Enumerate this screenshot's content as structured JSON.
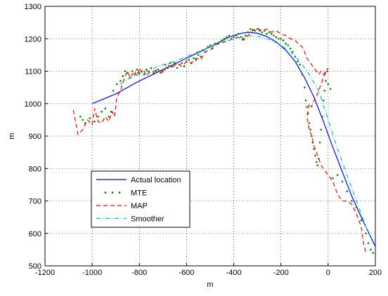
{
  "chart_data": {
    "type": "line",
    "title": "",
    "xlabel": "m",
    "ylabel": "m",
    "xlim": [
      -1200,
      200
    ],
    "ylim": [
      500,
      1300
    ],
    "xticks": [
      -1200,
      -1000,
      -800,
      -600,
      -400,
      -200,
      0,
      200
    ],
    "yticks": [
      500,
      600,
      700,
      800,
      900,
      1000,
      1100,
      1200,
      1300
    ],
    "grid": true,
    "legend_position": "lower-left",
    "series": [
      {
        "name": "Actual location",
        "style": "solid",
        "color": "#0000ff",
        "x": [
          -1000,
          -900,
          -800,
          -700,
          -600,
          -500,
          -420,
          -380,
          -340,
          -300,
          -260,
          -220,
          -180,
          -140,
          -100,
          -60,
          -20,
          20,
          60,
          100,
          140,
          170,
          200
        ],
        "y": [
          1000,
          1030,
          1070,
          1105,
          1140,
          1175,
          1205,
          1215,
          1220,
          1217,
          1207,
          1190,
          1165,
          1130,
          1080,
          1020,
          945,
          865,
          790,
          715,
          650,
          605,
          560
        ]
      },
      {
        "name": "MTE",
        "style": "dots",
        "color": "#008000",
        "x": [
          -1050,
          -1040,
          -1030,
          -1010,
          -990,
          -975,
          -960,
          -945,
          -930,
          -920,
          -910,
          -895,
          -880,
          -870,
          -860,
          -850,
          -840,
          -830,
          -820,
          -810,
          -800,
          -790,
          -780,
          -770,
          -760,
          -750,
          -740,
          -730,
          -720,
          -710,
          -700,
          -690,
          -680,
          -670,
          -660,
          -650,
          -640,
          -630,
          -620,
          -610,
          -600,
          -590,
          -580,
          -570,
          -560,
          -550,
          -540,
          -530,
          -520,
          -510,
          -500,
          -490,
          -480,
          -470,
          -460,
          -450,
          -440,
          -430,
          -420,
          -410,
          -400,
          -390,
          -380,
          -370,
          -360,
          -350,
          -340,
          -330,
          -320,
          -310,
          -300,
          -290,
          -280,
          -270,
          -260,
          -250,
          -240,
          -230,
          -220,
          -210,
          -200,
          -190,
          -180,
          -170,
          -160,
          -150,
          -140,
          -130,
          -120,
          -110,
          -100,
          -95,
          -90,
          -85,
          -80,
          -75,
          -70,
          -65,
          -60,
          -55,
          -50,
          -45,
          -40,
          -35,
          -30,
          -25,
          -20,
          -15,
          -10,
          -5,
          0,
          10,
          20,
          40,
          60,
          80,
          100,
          120,
          140,
          160,
          170,
          180,
          190
        ],
        "y": [
          960,
          950,
          940,
          955,
          945,
          960,
          975,
          985,
          960,
          975,
          1040,
          1060,
          1070,
          1085,
          1100,
          1095,
          1080,
          1100,
          1090,
          1105,
          1095,
          1100,
          1090,
          1105,
          1100,
          1110,
          1095,
          1100,
          1105,
          1095,
          1100,
          1120,
          1110,
          1125,
          1115,
          1125,
          1110,
          1120,
          1125,
          1115,
          1130,
          1135,
          1125,
          1140,
          1135,
          1150,
          1145,
          1165,
          1160,
          1175,
          1180,
          1170,
          1185,
          1185,
          1190,
          1195,
          1200,
          1205,
          1210,
          1200,
          1205,
          1210,
          1215,
          1205,
          1200,
          1210,
          1220,
          1230,
          1228,
          1225,
          1230,
          1225,
          1220,
          1225,
          1215,
          1220,
          1215,
          1210,
          1205,
          1200,
          1200,
          1195,
          1185,
          1180,
          1170,
          1160,
          1145,
          1130,
          1120,
          1090,
          1050,
          1010,
          990,
          970,
          940,
          920,
          900,
          880,
          860,
          840,
          820,
          810,
          830,
          880,
          920,
          960,
          1010,
          1040,
          1070,
          1100,
          1060,
          1045,
          770,
          780,
          760,
          730,
          700,
          680,
          640,
          600,
          570,
          550,
          540
        ],
        "_note_removed": true
      },
      {
        "name": "MAP",
        "style": "dashed",
        "color": "#ff0000",
        "x": [
          -1080,
          -1060,
          -1040,
          -1020,
          -1000,
          -990,
          -975,
          -960,
          -945,
          -930,
          -915,
          -905,
          -895,
          -880,
          -870,
          -860,
          -850,
          -840,
          -830,
          -820,
          -810,
          -800,
          -790,
          -780,
          -770,
          -760,
          -740,
          -720,
          -700,
          -680,
          -660,
          -640,
          -620,
          -600,
          -580,
          -560,
          -540,
          -520,
          -500,
          -480,
          -460,
          -440,
          -420,
          -400,
          -380,
          -360,
          -340,
          -320,
          -300,
          -280,
          -260,
          -240,
          -220,
          -200,
          -180,
          -160,
          -140,
          -120,
          -110,
          -100,
          -90,
          -80,
          -70,
          -60,
          -50,
          -40,
          -30,
          -20,
          -10,
          0,
          -10,
          -20,
          -30,
          -40,
          -50,
          -60,
          -70,
          -80,
          -90,
          -80,
          -70,
          -60,
          -50,
          -40,
          -30,
          -20,
          0,
          20,
          40,
          60,
          80,
          100,
          120,
          140,
          150,
          160
        ],
        "y": [
          980,
          905,
          920,
          950,
          935,
          985,
          945,
          940,
          960,
          945,
          975,
          960,
          1020,
          1040,
          1065,
          1085,
          1100,
          1080,
          1090,
          1100,
          1085,
          1110,
          1095,
          1100,
          1085,
          1095,
          1100,
          1105,
          1095,
          1120,
          1110,
          1125,
          1115,
          1130,
          1125,
          1140,
          1135,
          1160,
          1165,
          1180,
          1185,
          1190,
          1195,
          1200,
          1205,
          1195,
          1210,
          1225,
          1232,
          1225,
          1230,
          1220,
          1225,
          1215,
          1210,
          1200,
          1195,
          1180,
          1175,
          1160,
          1140,
          1130,
          1120,
          1110,
          1100,
          1090,
          1100,
          1090,
          1100,
          1110,
          1095,
          1080,
          1060,
          1040,
          1020,
          1010,
          990,
          1000,
          960,
          920,
          900,
          870,
          850,
          830,
          810,
          800,
          780,
          760,
          720,
          700,
          700,
          690,
          660,
          620,
          570,
          540
        ]
      },
      {
        "name": "Smoother",
        "style": "dashdot",
        "color": "#00bfbf",
        "x": [
          -880,
          -850,
          -800,
          -750,
          -700,
          -650,
          -600,
          -550,
          -500,
          -450,
          -400,
          -360,
          -320,
          -280,
          -240,
          -200,
          -160,
          -120,
          -80,
          -40,
          0,
          40,
          80,
          120,
          160,
          190
        ],
        "y": [
          1060,
          1075,
          1090,
          1105,
          1120,
          1130,
          1145,
          1160,
          1175,
          1190,
          1200,
          1205,
          1210,
          1205,
          1195,
          1180,
          1160,
          1130,
          1090,
          1040,
          950,
          860,
          780,
          700,
          620,
          570
        ]
      }
    ]
  },
  "colors": {
    "background": "#ffffff",
    "grid": "#000000",
    "axes": "#000000"
  }
}
